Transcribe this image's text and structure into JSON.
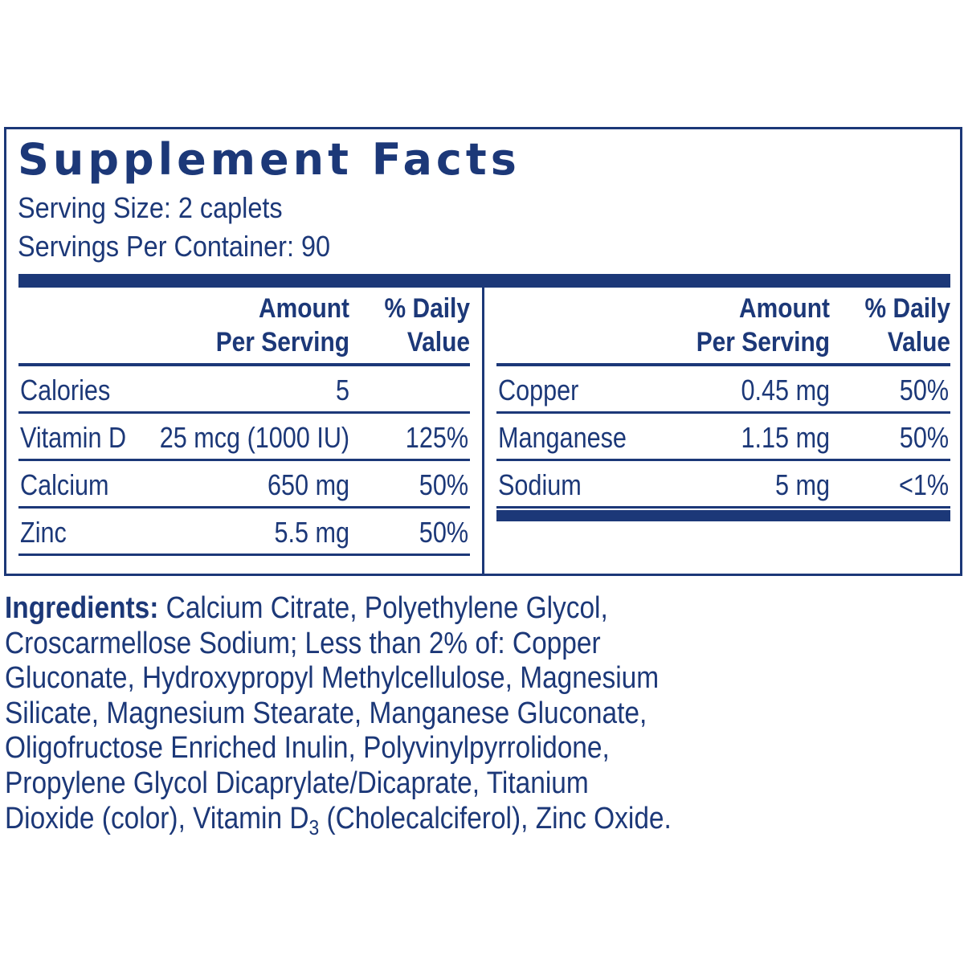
{
  "title": "Supplement Facts",
  "serving_size": "Serving Size: 2 caplets",
  "servings_per_container": "Servings Per Container: 90",
  "headers": {
    "amount": "Amount\nPer Serving",
    "daily_value": "% Daily\nValue"
  },
  "left_rows": [
    {
      "name": "Calories",
      "amount": "5",
      "dv": ""
    },
    {
      "name": "Vitamin D",
      "amount": "25 mcg (1000 IU)",
      "dv": "125%"
    },
    {
      "name": "Calcium",
      "amount": "650 mg",
      "dv": "50%"
    },
    {
      "name": "Zinc",
      "amount": "5.5 mg",
      "dv": "50%"
    }
  ],
  "right_rows": [
    {
      "name": "Copper",
      "amount": "0.45 mg",
      "dv": "50%"
    },
    {
      "name": "Manganese",
      "amount": "1.15 mg",
      "dv": "50%"
    },
    {
      "name": "Sodium",
      "amount": "5 mg",
      "dv": "<1%"
    }
  ],
  "ingredients": {
    "label": "Ingredients:",
    "lines": [
      " Calcium Citrate, Polyethylene Glycol,",
      "Croscarmellose Sodium; Less than 2% of: Copper",
      "Gluconate, Hydroxypropyl Methylcellulose, Magnesium",
      "Silicate, Magnesium Stearate, Manganese Gluconate,",
      "Oligofructose Enriched Inulin, Polyvinylpyrrolidone,",
      "Propylene Glycol Dicaprylate/Dicaprate, Titanium"
    ],
    "last_line_before": "Dioxide (color), Vitamin D",
    "last_line_sub": "3",
    "last_line_after": " (Cholecalciferol), Zinc Oxide."
  },
  "colors": {
    "ink": "#1c3878",
    "background": "#ffffff"
  }
}
